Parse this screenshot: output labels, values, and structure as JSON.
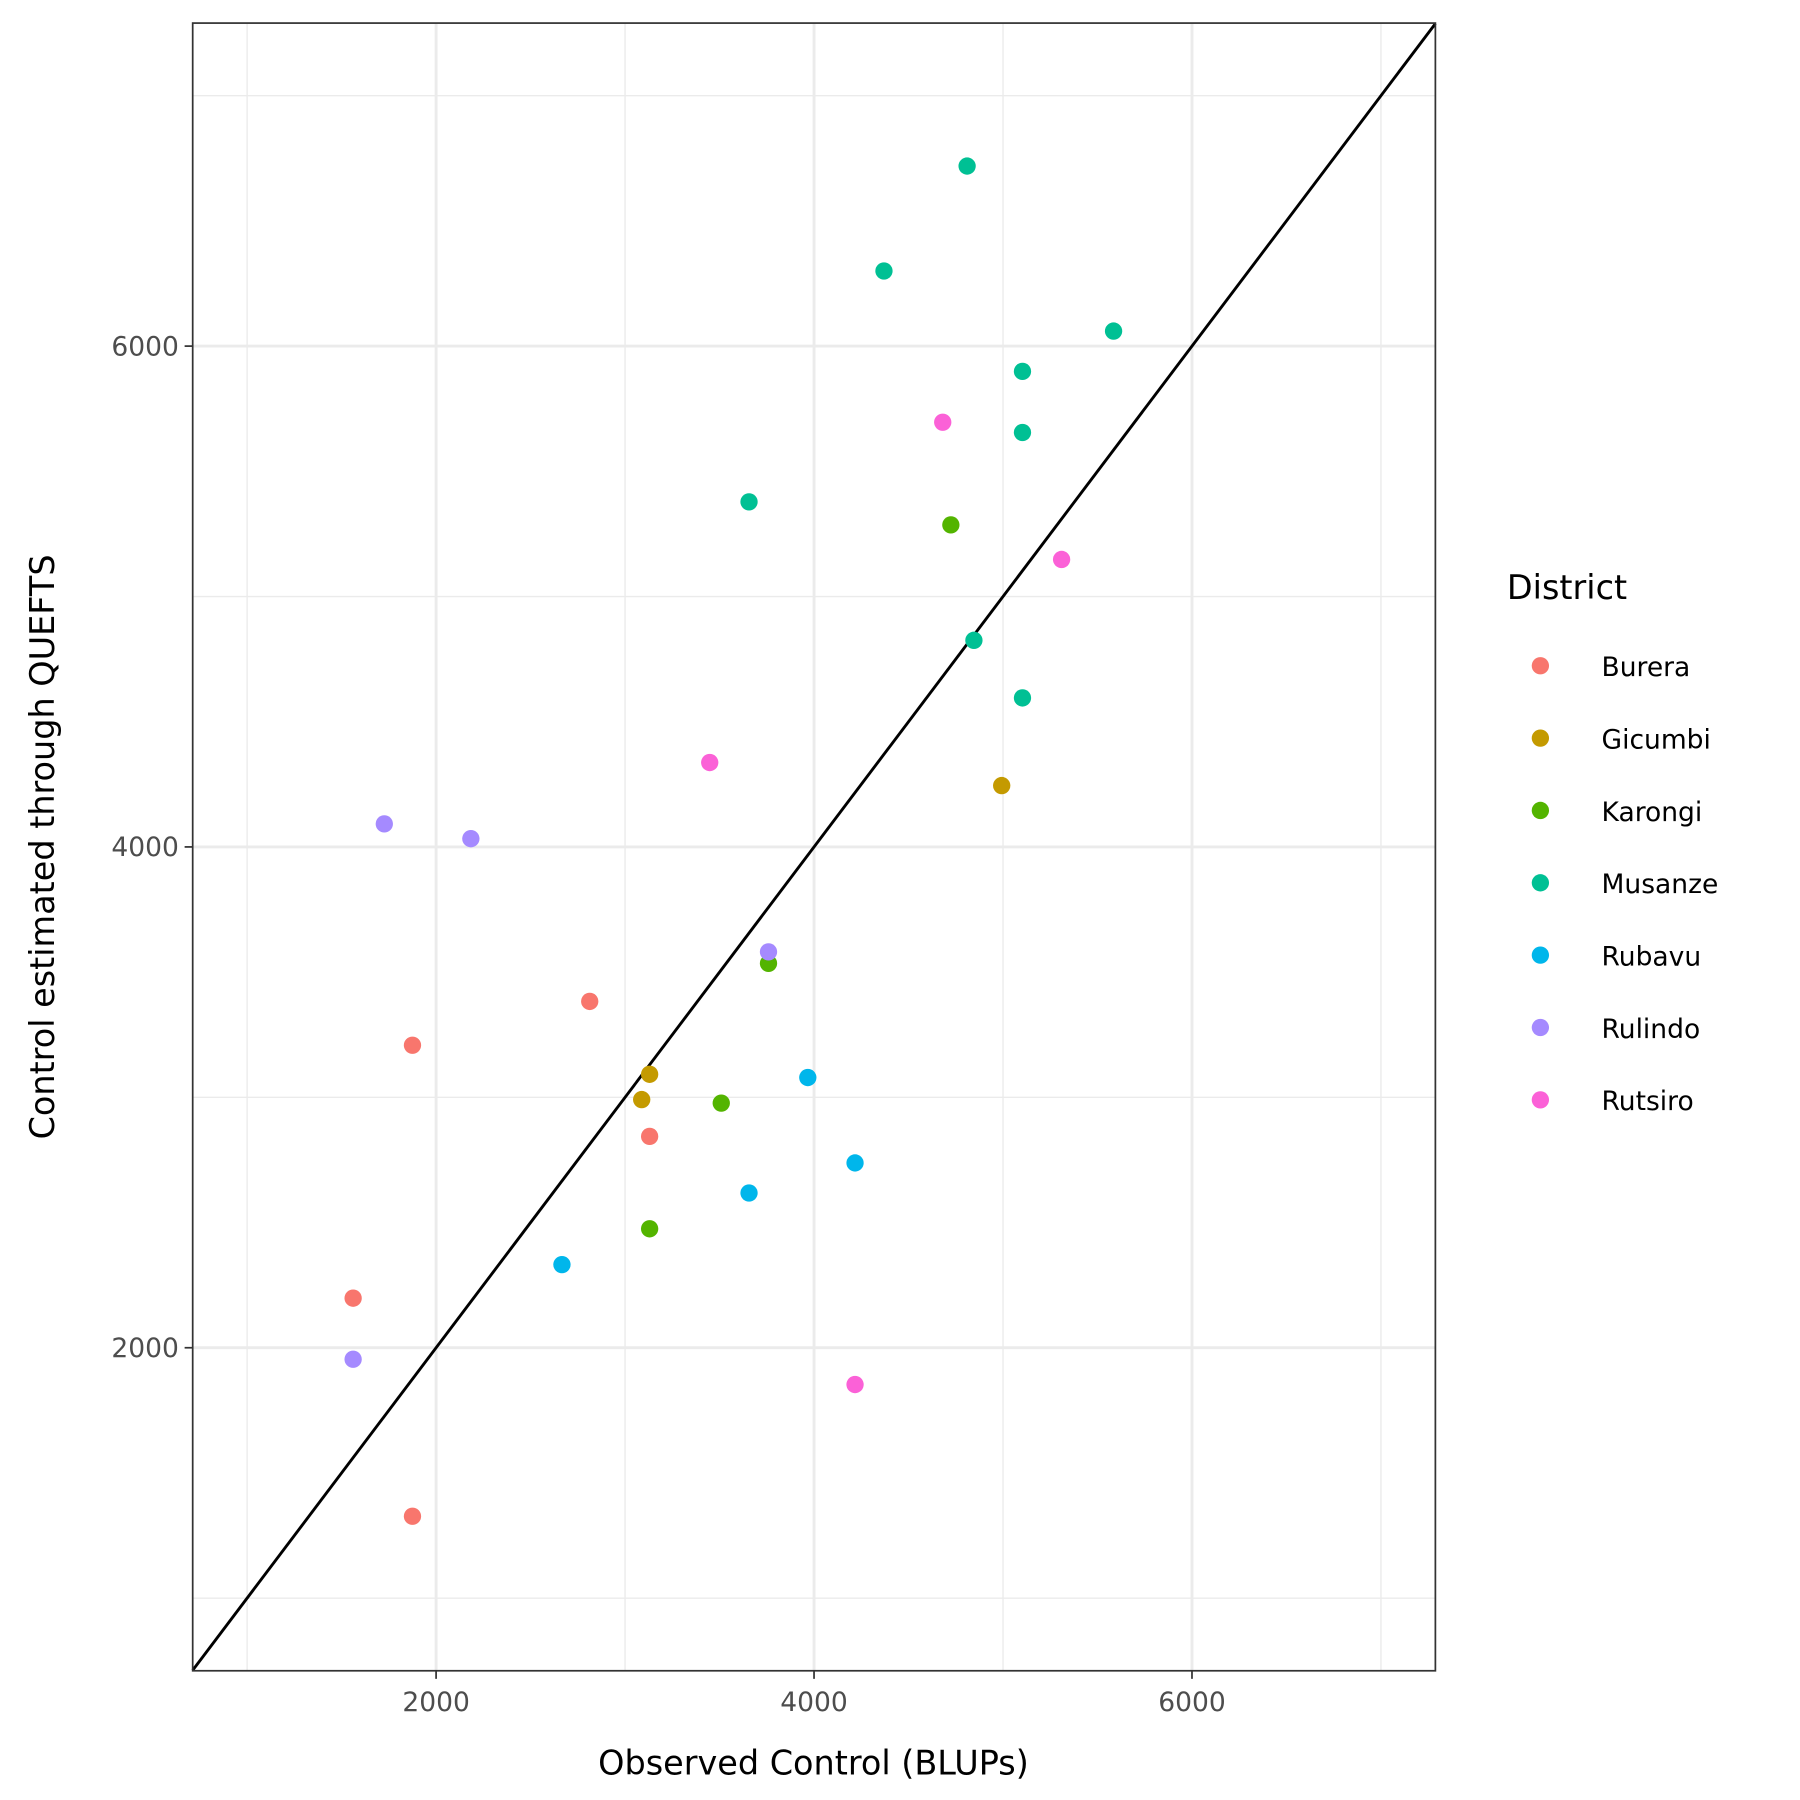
{
  "chart_data": {
    "type": "scatter",
    "title": "",
    "xlabel": "Observed Control (BLUPs)",
    "ylabel": "Control estimated through QUEFTS",
    "xlim": [
      712,
      7288
    ],
    "ylim": [
      710,
      7290
    ],
    "x_ticks": [
      2000,
      4000,
      6000
    ],
    "y_ticks": [
      2000,
      4000,
      6000
    ],
    "x_tick_labels": [
      "2000",
      "4000",
      "6000"
    ],
    "y_tick_labels": [
      "2000",
      "4000",
      "6000"
    ],
    "minor_grid": [
      1000,
      3000,
      5000,
      7000
    ],
    "grid": true,
    "reference_line": "y = x",
    "legend": {
      "title": "District",
      "placement": "right"
    },
    "series": [
      {
        "name": "Burera",
        "color": "#F8766D",
        "points": [
          [
            1875,
            3208
          ],
          [
            2813,
            3383
          ],
          [
            1561,
            2198
          ],
          [
            3130,
            2844
          ],
          [
            1875,
            1327
          ]
        ]
      },
      {
        "name": "Gicumbi",
        "color": "#C49A00",
        "points": [
          [
            3130,
            3092
          ],
          [
            3088,
            2991
          ],
          [
            4993,
            4245
          ]
        ]
      },
      {
        "name": "Karongi",
        "color": "#53B400",
        "points": [
          [
            4724,
            5286
          ],
          [
            3759,
            3535
          ],
          [
            3509,
            2977
          ],
          [
            3130,
            2475
          ]
        ]
      },
      {
        "name": "Musanze",
        "color": "#00C094",
        "points": [
          [
            4810,
            6719
          ],
          [
            4370,
            6300
          ],
          [
            5585,
            6060
          ],
          [
            5103,
            5899
          ],
          [
            5103,
            5655
          ],
          [
            3656,
            5378
          ],
          [
            4846,
            4825
          ],
          [
            5103,
            4595
          ]
        ]
      },
      {
        "name": "Rubavu",
        "color": "#00B6EB",
        "points": [
          [
            3967,
            3079
          ],
          [
            4217,
            2738
          ],
          [
            3656,
            2618
          ],
          [
            2666,
            2332
          ]
        ]
      },
      {
        "name": "Rulindo",
        "color": "#A58AFF",
        "points": [
          [
            1726,
            4092
          ],
          [
            2184,
            4033
          ],
          [
            3759,
            3581
          ],
          [
            1561,
            1954
          ]
        ]
      },
      {
        "name": "Rutsiro",
        "color": "#FB61D7",
        "points": [
          [
            4681,
            5696
          ],
          [
            5310,
            5148
          ],
          [
            3448,
            4337
          ],
          [
            4217,
            1853
          ]
        ]
      }
    ]
  }
}
